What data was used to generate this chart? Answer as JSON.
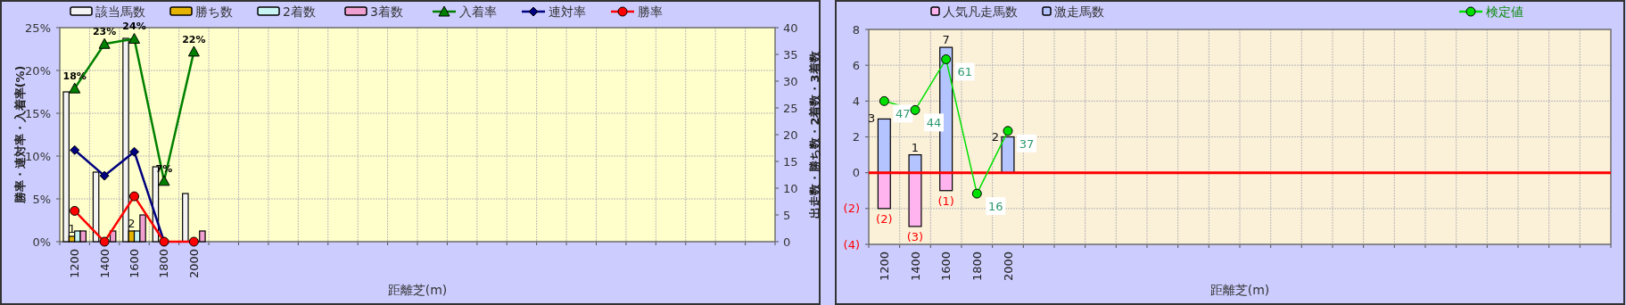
{
  "chart_data": [
    {
      "type": "bar",
      "xlabel": "距離芝(m)",
      "ylabel": "勝率・連対率・入着率(%)",
      "y2label": "出走数・勝ち数・2着数・3着数",
      "categories": [
        "1200",
        "1400",
        "1600",
        "1800",
        "2000",
        null,
        null,
        null,
        null,
        null,
        null,
        null,
        null,
        null,
        null,
        null,
        null,
        null,
        null,
        null,
        null,
        null,
        null,
        null
      ],
      "ylim": [
        0,
        25
      ],
      "yticks": [
        {
          "value": 0,
          "label": "0%"
        },
        {
          "value": 5,
          "label": "5%"
        },
        {
          "value": 10,
          "label": "10%"
        },
        {
          "value": 15,
          "label": "15%"
        },
        {
          "value": 20,
          "label": "20%"
        },
        {
          "value": 25,
          "label": "25%"
        }
      ],
      "y2lim": [
        0,
        40
      ],
      "y2ticks": [
        0,
        5,
        10,
        15,
        20,
        25,
        30,
        35,
        40
      ],
      "grid": true,
      "legend": "top",
      "series": [
        {
          "name": "該当馬数",
          "type": "bar",
          "axis": "y2",
          "color": "#f4f4f4",
          "values": [
            28,
            13,
            38,
            14,
            9,
            null,
            null,
            null,
            null,
            null,
            null,
            null,
            null,
            null,
            null,
            null,
            null,
            null,
            null,
            null,
            null,
            null,
            null,
            null
          ]
        },
        {
          "name": "勝ち数",
          "type": "bar",
          "axis": "y2",
          "color": "#e6b400",
          "values": [
            1,
            0,
            2,
            0,
            0,
            null,
            null,
            null,
            null,
            null,
            null,
            null,
            null,
            null,
            null,
            null,
            null,
            null,
            null,
            null,
            null,
            null,
            null,
            null
          ],
          "value_labels": [
            "1",
            null,
            "2",
            null,
            null,
            null,
            null,
            null,
            null,
            null,
            null,
            null,
            null,
            null,
            null,
            null,
            null,
            null,
            null,
            null,
            null,
            null,
            null,
            null
          ]
        },
        {
          "name": "2着数",
          "type": "bar",
          "axis": "y2",
          "color": "#c8f4f4",
          "values": [
            2,
            null,
            2,
            0,
            0,
            null,
            null,
            null,
            null,
            null,
            null,
            null,
            null,
            null,
            null,
            null,
            null,
            null,
            null,
            null,
            null,
            null,
            null,
            null
          ]
        },
        {
          "name": "3着数",
          "type": "bar",
          "axis": "y2",
          "color": "#f0a0d0",
          "values": [
            2,
            2,
            5,
            null,
            2,
            null,
            null,
            null,
            null,
            null,
            null,
            null,
            null,
            null,
            null,
            null,
            null,
            null,
            null,
            null,
            null,
            null,
            null,
            null
          ]
        },
        {
          "name": "入着率",
          "type": "line",
          "color": "#008000",
          "marker": "triangle",
          "values": [
            17.9,
            23.1,
            23.7,
            7.1,
            22.2,
            null,
            null,
            null,
            null,
            null,
            null,
            null,
            null,
            null,
            null,
            null,
            null,
            null,
            null,
            null,
            null,
            null,
            null,
            null
          ],
          "value_labels": [
            "18%",
            "23%",
            "24%",
            "7%",
            "22%",
            null,
            null,
            null,
            null,
            null,
            null,
            null,
            null,
            null,
            null,
            null,
            null,
            null,
            null,
            null,
            null,
            null,
            null,
            null
          ]
        },
        {
          "name": "連対率",
          "type": "line",
          "color": "#000080",
          "marker": "diamond",
          "values": [
            10.7,
            7.7,
            10.5,
            0,
            null,
            null,
            null,
            null,
            null,
            null,
            null,
            null,
            null,
            null,
            null,
            null,
            null,
            null,
            null,
            null,
            null,
            null,
            null,
            null
          ]
        },
        {
          "name": "勝率",
          "type": "line",
          "color": "#ff0000",
          "marker": "circle",
          "values": [
            3.6,
            0,
            5.3,
            0,
            0,
            null,
            null,
            null,
            null,
            null,
            null,
            null,
            null,
            null,
            null,
            null,
            null,
            null,
            null,
            null,
            null,
            null,
            null,
            null
          ]
        }
      ]
    },
    {
      "type": "bar",
      "stacked": true,
      "xlabel": "距離芝(m)",
      "categories": [
        "1200",
        "1400",
        "1600",
        "1800",
        "2000",
        null,
        null,
        null,
        null,
        null,
        null,
        null,
        null,
        null,
        null,
        null,
        null,
        null,
        null,
        null,
        null,
        null,
        null,
        null
      ],
      "ylim": [
        -4,
        8
      ],
      "yticks": [
        {
          "value": -4,
          "label": "(4)"
        },
        {
          "value": -2,
          "label": "(2)"
        },
        0,
        2,
        4,
        6,
        8
      ],
      "y2lim": [
        -1,
        71
      ],
      "grid": true,
      "legend": "top",
      "ref_lines": [
        {
          "axis": "y",
          "value": 0,
          "color": "#ff0000"
        }
      ],
      "series": [
        {
          "name": "人気凡走馬数",
          "type": "bar",
          "color": "#ffb4f0",
          "values": [
            -2,
            -3,
            -1,
            0,
            0,
            null,
            null,
            null,
            null,
            null,
            null,
            null,
            null,
            null,
            null,
            null,
            null,
            null,
            null,
            null,
            null,
            null,
            null,
            null
          ],
          "value_labels": [
            "(2)",
            "(3)",
            "(1)",
            null,
            null,
            null,
            null,
            null,
            null,
            null,
            null,
            null,
            null,
            null,
            null,
            null,
            null,
            null,
            null,
            null,
            null,
            null,
            null,
            null
          ]
        },
        {
          "name": "激走馬数",
          "type": "bar",
          "color": "#b4c4ff",
          "values": [
            3,
            1,
            7,
            0,
            2,
            null,
            null,
            null,
            null,
            null,
            null,
            null,
            null,
            null,
            null,
            null,
            null,
            null,
            null,
            null,
            null,
            null,
            null,
            null
          ],
          "value_labels": [
            "3",
            "1",
            "7",
            null,
            "2",
            null,
            null,
            null,
            null,
            null,
            null,
            null,
            null,
            null,
            null,
            null,
            null,
            null,
            null,
            null,
            null,
            null,
            null,
            null
          ]
        },
        {
          "name": "検定値",
          "type": "line",
          "axis": "y2",
          "color": "#00e000",
          "marker": "circle",
          "values": [
            47,
            44,
            61,
            16,
            37,
            null,
            null,
            null,
            null,
            null,
            null,
            null,
            null,
            null,
            null,
            null,
            null,
            null,
            null,
            null,
            null,
            null,
            null,
            null
          ],
          "value_labels": [
            "47",
            "44",
            "61",
            "16",
            "37",
            null,
            null,
            null,
            null,
            null,
            null,
            null,
            null,
            null,
            null,
            null,
            null,
            null,
            null,
            null,
            null,
            null,
            null,
            null
          ]
        }
      ]
    }
  ]
}
